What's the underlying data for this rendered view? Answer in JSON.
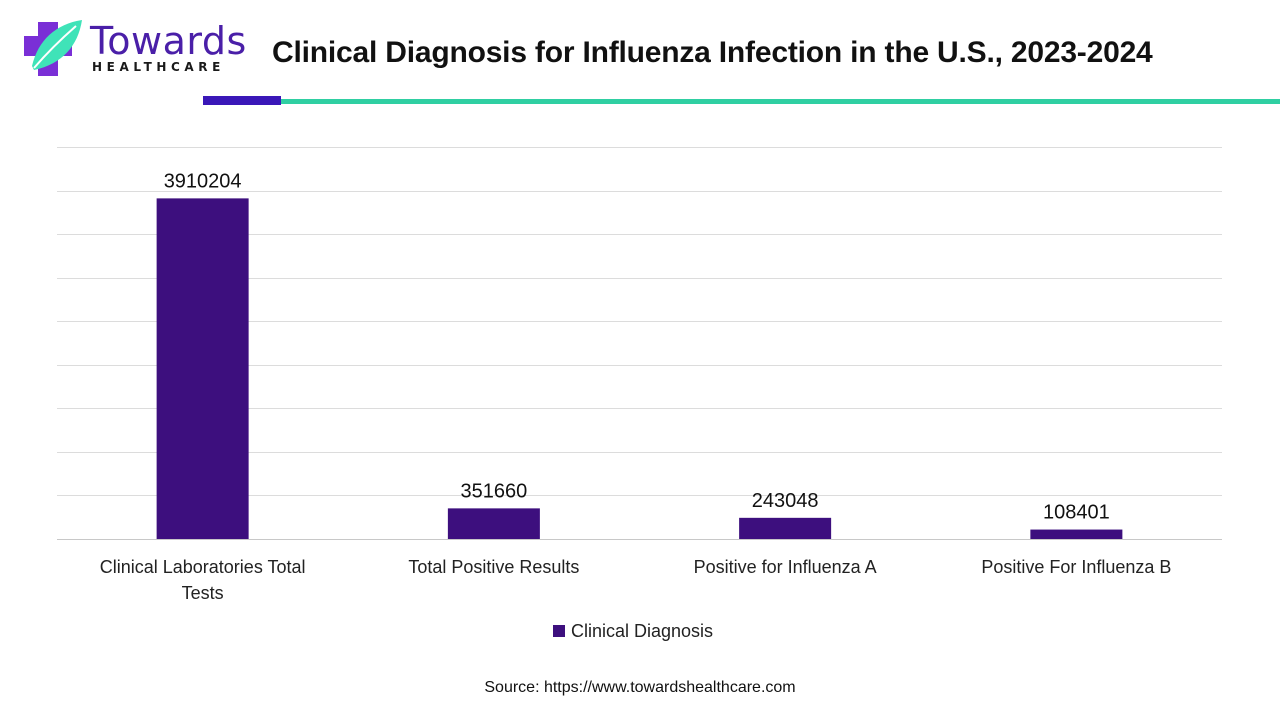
{
  "header": {
    "brand_name": "Towards",
    "brand_sub": "HEALTHCARE",
    "title": "Clinical Diagnosis for Influenza Infection in the U.S., 2023-2024"
  },
  "colors": {
    "bar": "#3d0f7e",
    "accent_purple": "#3a17b8",
    "accent_green": "#2fcfa2",
    "logo_purple": "#7a2fd6",
    "logo_teal": "#3fe3b8"
  },
  "chart_data": {
    "type": "bar",
    "title": "",
    "categories": [
      [
        "Clinical Laboratories Total",
        "Tests"
      ],
      [
        "Total Positive Results"
      ],
      [
        "Positive for Influenza A"
      ],
      [
        "Positive For Influenza B"
      ]
    ],
    "series": [
      {
        "name": "Clinical Diagnosis",
        "values": [
          3910204,
          351660,
          243048,
          108401
        ]
      }
    ],
    "xlabel": "",
    "ylabel": "",
    "ylim": [
      0,
      4500000
    ],
    "grid": true,
    "legend": "bottom"
  },
  "footer": {
    "source": "Source: https://www.towardshealthcare.com"
  }
}
